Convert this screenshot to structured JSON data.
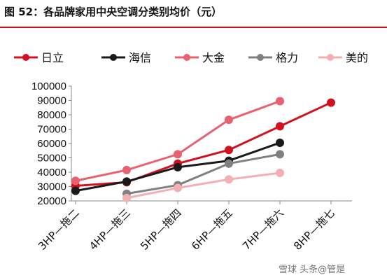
{
  "figure": {
    "title": "图 52：各品牌家用中央空调分类别均价（元）",
    "watermark": "雪球 头条@管是"
  },
  "colors": {
    "title_rule": "#c8101e",
    "axis": "#888888"
  },
  "chart_data": {
    "type": "line",
    "title": "图 52：各品牌家用中央空调分类别均价（元）",
    "xlabel": "",
    "ylabel": "",
    "ylim": [
      20000,
      100000
    ],
    "yticks": [
      20000,
      30000,
      40000,
      50000,
      60000,
      70000,
      80000,
      90000,
      100000
    ],
    "categories": [
      "3HP—拖二",
      "4HP—拖三",
      "5HP—拖四",
      "6HP—拖五",
      "7HP—拖六",
      "8HP—拖七"
    ],
    "legend_position": "top",
    "grid": false,
    "series": [
      {
        "name": "日立",
        "color": "#d0121f",
        "values": [
          30500,
          33000,
          46000,
          55500,
          72000,
          88500
        ]
      },
      {
        "name": "海信",
        "color": "#1a1a1a",
        "values": [
          27000,
          33500,
          43500,
          48000,
          60500,
          null
        ]
      },
      {
        "name": "大金",
        "color": "#e8616f",
        "values": [
          34000,
          41500,
          52500,
          76500,
          89500,
          null
        ]
      },
      {
        "name": "格力",
        "color": "#808080",
        "values": [
          null,
          25000,
          31000,
          46000,
          52500,
          null
        ]
      },
      {
        "name": "美的",
        "color": "#f3b0b3",
        "values": [
          null,
          22000,
          29000,
          35000,
          39500,
          null
        ]
      }
    ]
  }
}
